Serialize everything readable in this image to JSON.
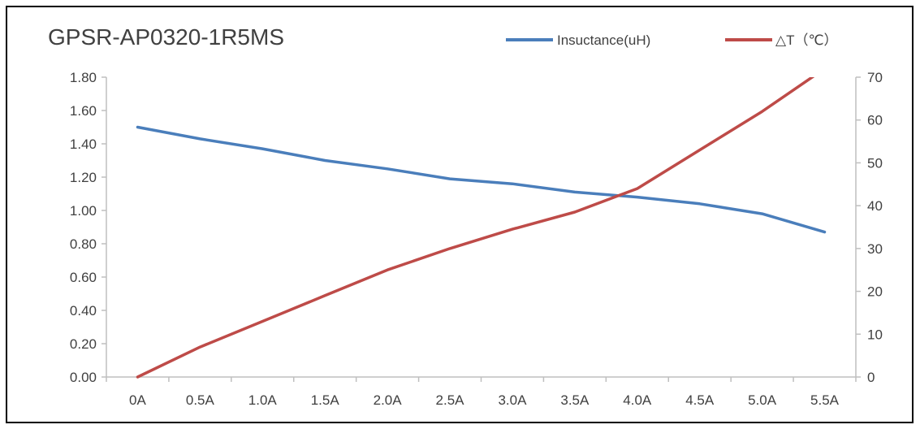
{
  "chart_data": {
    "type": "line",
    "title": "GPSR-AP0320-1R5MS",
    "categories": [
      "0A",
      "0.5A",
      "1.0A",
      "1.5A",
      "2.0A",
      "2.5A",
      "3.0A",
      "3.5A",
      "4.0A",
      "4.5A",
      "5.0A",
      "5.5A"
    ],
    "y_left": {
      "ylim": [
        0,
        1.8
      ],
      "ticks": [
        "0.00",
        "0.20",
        "0.40",
        "0.60",
        "0.80",
        "1.00",
        "1.20",
        "1.40",
        "1.60",
        "1.80"
      ]
    },
    "y_right": {
      "ylim": [
        0,
        70
      ],
      "ticks": [
        "0",
        "10",
        "20",
        "30",
        "40",
        "50",
        "60",
        "70"
      ]
    },
    "series": [
      {
        "name": "Insuctance(uH)",
        "axis": "left",
        "color": "#4a7ebb",
        "values": [
          1.5,
          1.43,
          1.37,
          1.3,
          1.25,
          1.19,
          1.16,
          1.11,
          1.08,
          1.04,
          0.98,
          0.87
        ]
      },
      {
        "name": "△T（℃）",
        "axis": "right",
        "color": "#be4b48",
        "values": [
          0,
          7,
          13,
          19,
          25,
          30,
          34.5,
          38.5,
          44,
          53,
          62,
          72
        ]
      }
    ],
    "legend_position": "top-right",
    "grid": false
  }
}
